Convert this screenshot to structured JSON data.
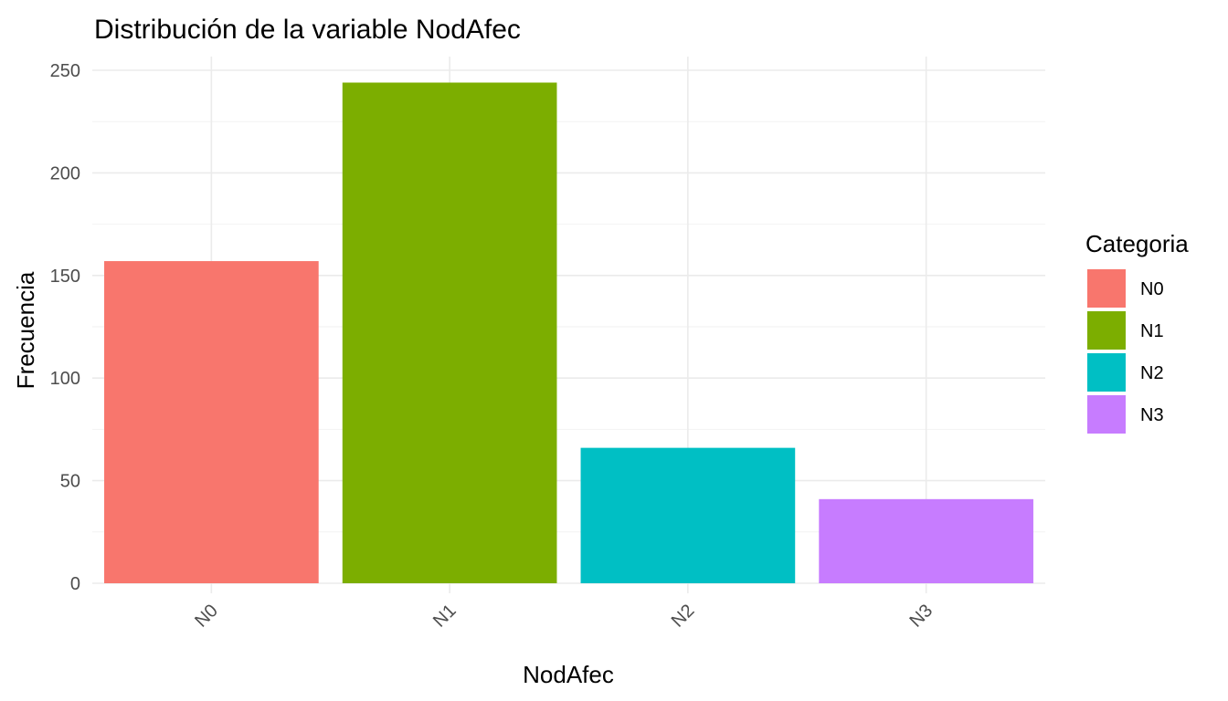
{
  "chart_data": {
    "type": "bar",
    "title": "Distribución de la variable NodAfec",
    "xlabel": "NodAfec",
    "ylabel": "Frecuencia",
    "categories": [
      "N0",
      "N1",
      "N2",
      "N3"
    ],
    "values": [
      157,
      244,
      66,
      41
    ],
    "colors": [
      "#F8766D",
      "#7CAE00",
      "#00BFC4",
      "#C77CFF"
    ],
    "ylim": [
      0,
      250
    ],
    "yticks": [
      "0",
      "50",
      "100",
      "150",
      "200",
      "250"
    ],
    "grid": true,
    "legend": {
      "title": "Categoria",
      "entries": [
        "N0",
        "N1",
        "N2",
        "N3"
      ],
      "placement": "right"
    }
  }
}
